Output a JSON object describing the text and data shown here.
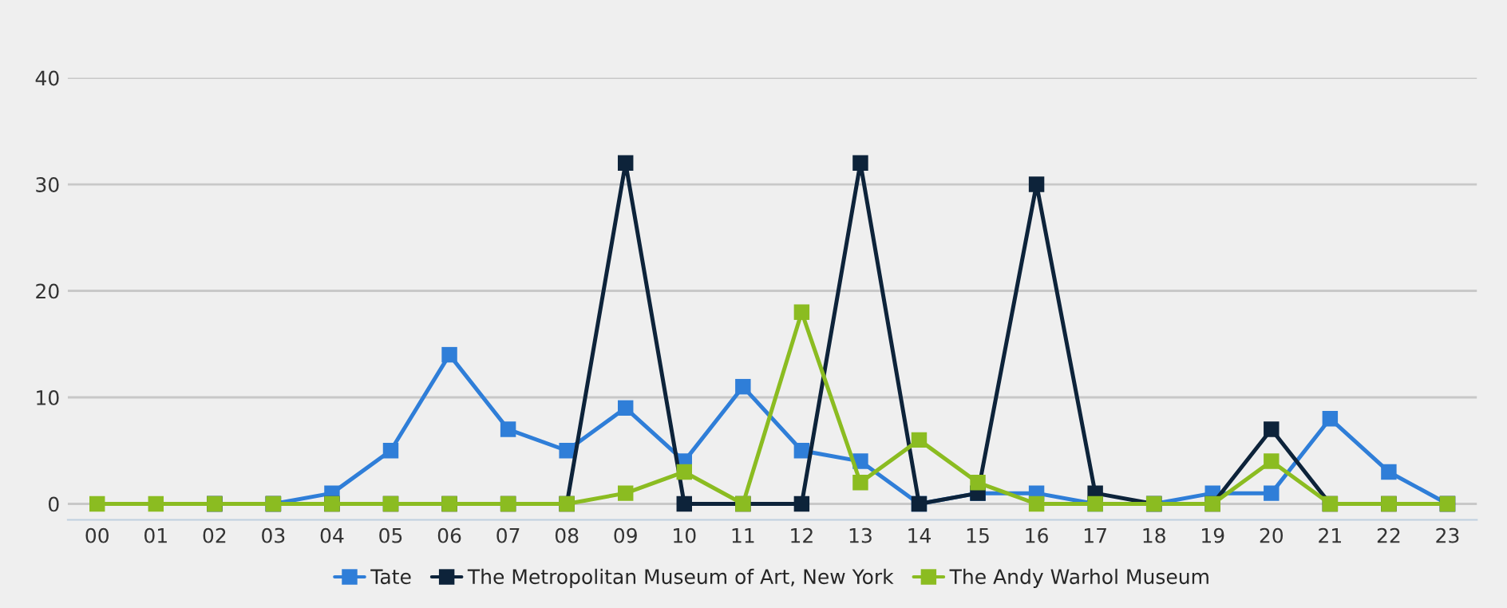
{
  "chart_data": {
    "type": "line",
    "categories": [
      "00",
      "01",
      "02",
      "03",
      "04",
      "05",
      "06",
      "07",
      "08",
      "09",
      "10",
      "11",
      "12",
      "13",
      "14",
      "15",
      "16",
      "17",
      "18",
      "19",
      "20",
      "21",
      "22",
      "23"
    ],
    "series": [
      {
        "name": "Tate",
        "color": "#2f7ed8",
        "values": [
          null,
          null,
          0,
          0,
          1,
          5,
          14,
          7,
          5,
          9,
          4,
          11,
          5,
          4,
          0,
          1,
          1,
          0,
          0,
          1,
          1,
          8,
          3,
          0
        ]
      },
      {
        "name": "The Metropolitan Museum of Art, New York",
        "color": "#0d233a",
        "values": [
          null,
          null,
          0,
          0,
          0,
          0,
          0,
          0,
          0,
          32,
          0,
          0,
          0,
          32,
          0,
          1,
          30,
          1,
          0,
          0,
          7,
          0,
          0,
          0
        ]
      },
      {
        "name": "The Andy Warhol Museum",
        "color": "#8bbc21",
        "values": [
          0,
          0,
          0,
          0,
          0,
          0,
          0,
          0,
          0,
          1,
          3,
          0,
          18,
          2,
          6,
          2,
          0,
          0,
          0,
          0,
          4,
          0,
          0,
          0
        ]
      }
    ],
    "ylim": [
      -1.5,
      40
    ],
    "yticks": [
      0,
      10,
      20,
      30,
      40
    ],
    "grid": "y",
    "legend": "bottom",
    "marker": "square",
    "line_style": "solid"
  }
}
